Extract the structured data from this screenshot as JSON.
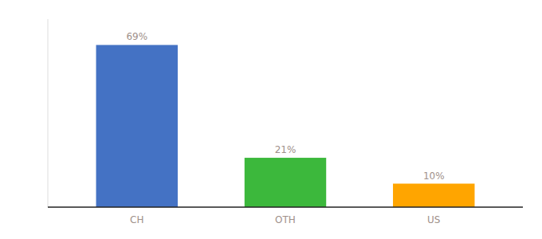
{
  "chart_data": {
    "type": "bar",
    "categories": [
      "CH",
      "OTH",
      "US"
    ],
    "values": [
      69,
      21,
      10
    ],
    "value_labels": [
      "69%",
      "21%",
      "10%"
    ],
    "colors": [
      "#4472C4",
      "#3CB83C",
      "#FFA500"
    ],
    "ylim": [
      0,
      80
    ],
    "data_labels": true,
    "tick_labels": "x",
    "grid": false
  }
}
